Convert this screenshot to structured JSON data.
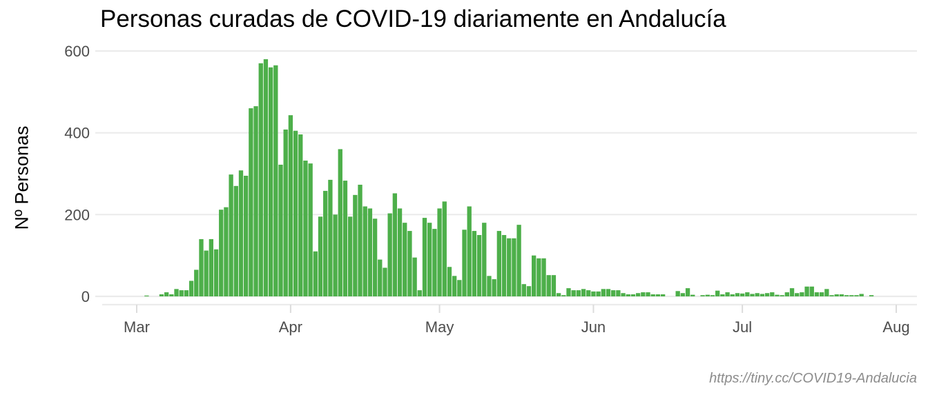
{
  "chart_data": {
    "type": "bar",
    "title": "Personas curadas de COVID-19 diariamente en Andalucía",
    "ylabel": "Nº Personas",
    "xlabel": "",
    "source": "https://tiny.cc/COVID19-Andalucia",
    "bar_color": "#4daf4a",
    "grid_color": "#ebebeb",
    "grid": true,
    "ylim": [
      0,
      600
    ],
    "yticks": [
      0,
      200,
      400,
      600
    ],
    "x_range": [
      "2020-02-26",
      "2020-08-01"
    ],
    "xticks": [
      {
        "date": "2020-03-01",
        "label": "Mar"
      },
      {
        "date": "2020-04-01",
        "label": "Apr"
      },
      {
        "date": "2020-05-01",
        "label": "May"
      },
      {
        "date": "2020-06-01",
        "label": "Jun"
      },
      {
        "date": "2020-07-01",
        "label": "Jul"
      },
      {
        "date": "2020-08-01",
        "label": "Aug"
      }
    ],
    "x_start": "2020-03-03",
    "values": [
      2,
      0,
      0,
      5,
      10,
      5,
      18,
      15,
      15,
      38,
      65,
      140,
      112,
      140,
      115,
      212,
      218,
      298,
      270,
      308,
      295,
      460,
      465,
      570,
      580,
      560,
      565,
      322,
      408,
      443,
      405,
      396,
      332,
      325,
      110,
      195,
      258,
      285,
      200,
      360,
      283,
      195,
      248,
      273,
      220,
      215,
      190,
      90,
      70,
      203,
      252,
      215,
      180,
      160,
      95,
      15,
      192,
      180,
      165,
      215,
      232,
      72,
      50,
      40,
      163,
      220,
      160,
      150,
      180,
      50,
      42,
      160,
      150,
      142,
      142,
      175,
      30,
      25,
      100,
      93,
      93,
      52,
      52,
      8,
      3,
      20,
      15,
      15,
      18,
      15,
      12,
      12,
      18,
      18,
      15,
      15,
      8,
      5,
      5,
      8,
      10,
      10,
      5,
      5,
      5,
      0,
      0,
      13,
      8,
      20,
      4,
      0,
      3,
      4,
      3,
      14,
      5,
      10,
      5,
      8,
      7,
      10,
      6,
      8,
      6,
      8,
      10,
      4,
      3,
      10,
      20,
      8,
      10,
      24,
      24,
      10,
      10,
      18,
      3,
      5,
      5,
      3,
      3,
      3,
      6,
      0,
      3,
      0,
      0,
      0
    ]
  }
}
